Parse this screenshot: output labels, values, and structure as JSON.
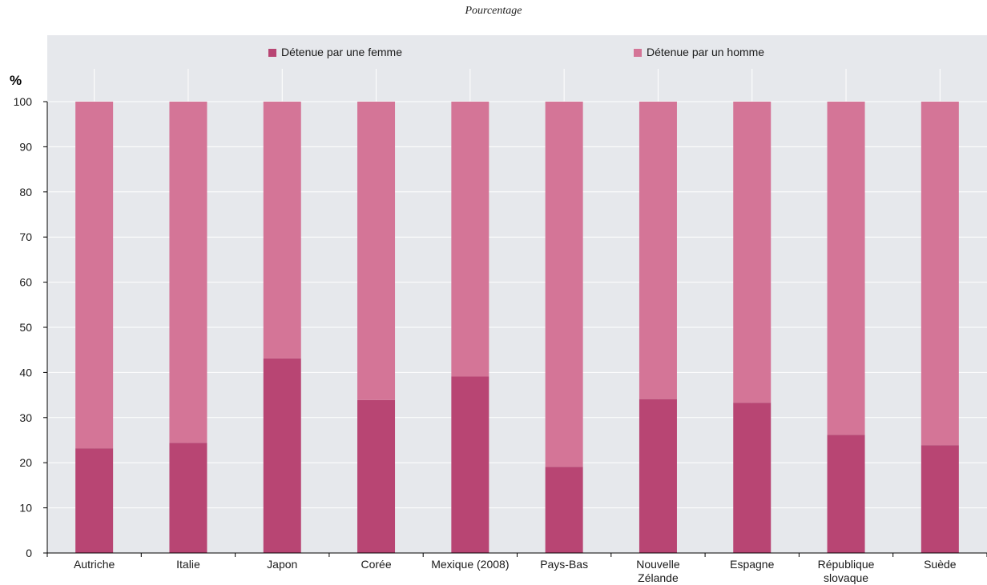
{
  "subtitle": "Pourcentage",
  "colors": {
    "femme": "#b84573",
    "homme": "#d47597",
    "plot_bg": "#e6e8ec",
    "grid": "#ffffff",
    "axis": "#000000"
  },
  "chart_data": {
    "type": "bar",
    "stacked": true,
    "title": "",
    "subtitle": "Pourcentage",
    "ylabel": "%",
    "xlabel": "",
    "ylim": [
      0,
      100
    ],
    "yticks": [
      0,
      10,
      20,
      30,
      40,
      50,
      60,
      70,
      80,
      90,
      100
    ],
    "grid": true,
    "legend_position": "top",
    "categories": [
      "Autriche",
      "Italie",
      "Japon",
      "Corée",
      "Mexique (2008)",
      "Pays-Bas",
      "Nouvelle Zélande",
      "Espagne",
      "République slovaque",
      "Suède"
    ],
    "category_lines": [
      [
        "Autriche"
      ],
      [
        "Italie"
      ],
      [
        "Japon"
      ],
      [
        "Corée"
      ],
      [
        "Mexique (2008)"
      ],
      [
        "Pays-Bas"
      ],
      [
        "Nouvelle",
        "Zélande"
      ],
      [
        "Espagne"
      ],
      [
        "République",
        "slovaque"
      ],
      [
        "Suède"
      ]
    ],
    "series": [
      {
        "name": "Détenue par une femme",
        "values": [
          23.2,
          24.4,
          43.1,
          33.9,
          39.1,
          19.1,
          34.1,
          33.3,
          26.2,
          23.9
        ]
      },
      {
        "name": "Détenue par un homme",
        "values": [
          76.8,
          75.6,
          56.9,
          66.1,
          60.9,
          80.9,
          65.9,
          66.7,
          73.8,
          76.1
        ]
      }
    ]
  }
}
